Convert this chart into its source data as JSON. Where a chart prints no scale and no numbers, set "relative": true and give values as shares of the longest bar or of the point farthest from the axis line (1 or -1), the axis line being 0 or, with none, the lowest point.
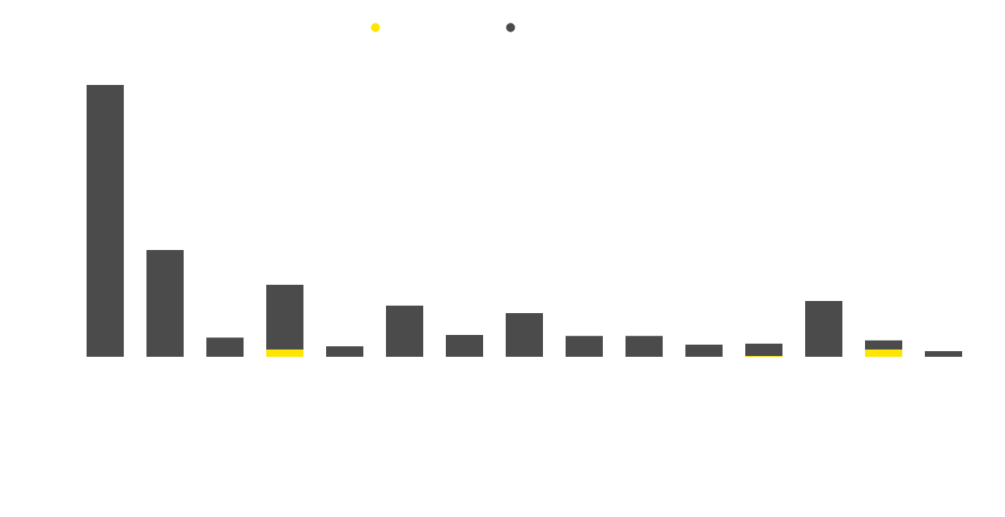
{
  "chart_data": {
    "type": "bar",
    "stacked": true,
    "relative": true,
    "categories": [
      null,
      null,
      null,
      null,
      null,
      null,
      null,
      null,
      null,
      null,
      null,
      null,
      null,
      null,
      null
    ],
    "series": [
      {
        "color": "#ffe600",
        "values": [
          0,
          0,
          0,
          0.027,
          0,
          0,
          0,
          0,
          0,
          0,
          0,
          0.003,
          0,
          0.027,
          0
        ]
      },
      {
        "color": "#4b4b4b",
        "values": [
          1.0,
          0.393,
          0.071,
          0.238,
          0.039,
          0.188,
          0.08,
          0.161,
          0.077,
          0.077,
          0.045,
          0.045,
          0.205,
          0.033,
          0.021
        ]
      }
    ]
  }
}
